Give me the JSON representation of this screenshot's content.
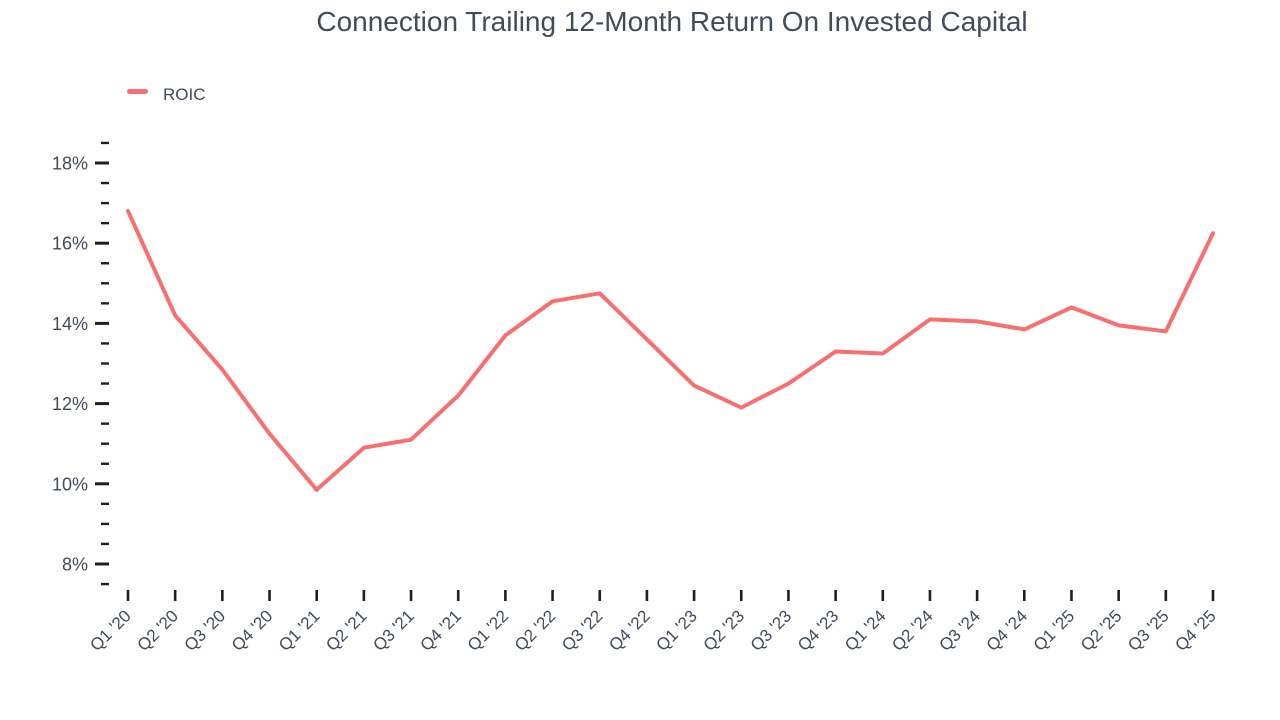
{
  "chart_data": {
    "type": "line",
    "title": "Connection Trailing 12-Month Return On Invested Capital",
    "unit": "%",
    "grid": false,
    "legend_position": "top-left",
    "categories": [
      "Q1 '20",
      "Q2 '20",
      "Q3 '20",
      "Q4 '20",
      "Q1 '21",
      "Q2 '21",
      "Q3 '21",
      "Q4 '21",
      "Q1 '22",
      "Q2 '22",
      "Q3 '22",
      "Q4 '22",
      "Q1 '23",
      "Q2 '23",
      "Q3 '23",
      "Q4 '23",
      "Q1 '24",
      "Q2 '24",
      "Q3 '24",
      "Q4 '24",
      "Q1 '25",
      "Q2 '25",
      "Q3 '25",
      "Q4 '25"
    ],
    "series": [
      {
        "name": "ROIC",
        "color": "#F76F6F",
        "values": [
          16.8,
          14.2,
          12.85,
          11.25,
          9.85,
          10.9,
          11.1,
          12.2,
          13.7,
          14.55,
          14.75,
          13.6,
          12.45,
          11.9,
          12.5,
          13.3,
          13.25,
          14.1,
          14.05,
          13.85,
          14.4,
          13.95,
          13.8,
          16.25
        ]
      }
    ],
    "y_axis": {
      "major_values": [
        18,
        16,
        14,
        12,
        10,
        8
      ],
      "major_labels": [
        "18%",
        "16%",
        "14%",
        "12%",
        "10%",
        "8%"
      ],
      "minor_step": 0.5,
      "ylim": [
        7.5,
        18.5
      ]
    },
    "colors": {
      "line": "#F76F6F",
      "text": "#414B5C",
      "tick": "#1F1F1F"
    }
  }
}
